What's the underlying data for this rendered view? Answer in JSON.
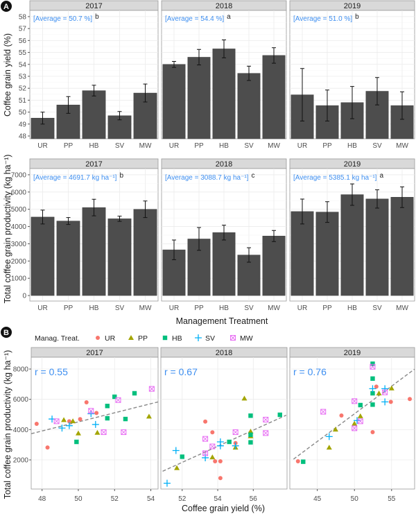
{
  "chart_data": [
    {
      "type": "bar",
      "panel_label": "A",
      "ylabel": "Coffee grain yield (%)",
      "xlabel": "",
      "ylim": [
        47.77,
        58.52
      ],
      "yticks": [
        48,
        49,
        50,
        51,
        52,
        53,
        54,
        55,
        56,
        57,
        58
      ],
      "categories": [
        "UR",
        "PP",
        "HB",
        "SV",
        "MW"
      ],
      "grid": true,
      "facets": [
        {
          "strip": "2017",
          "average_text": "[Average = 50.7 %]",
          "letter": "b",
          "values": [
            49.5,
            50.6,
            51.8,
            49.7,
            51.6
          ],
          "errors": [
            0.5,
            0.7,
            0.45,
            0.35,
            0.75
          ]
        },
        {
          "strip": "2018",
          "average_text": "[Average = 54.4 %]",
          "letter": "a",
          "values": [
            54.0,
            54.6,
            55.3,
            53.25,
            54.75
          ],
          "errors": [
            0.25,
            0.65,
            0.75,
            0.6,
            0.65
          ]
        },
        {
          "strip": "2019",
          "average_text": "[Average = 51.0 %]",
          "letter": "b",
          "values": [
            51.45,
            50.55,
            50.8,
            51.75,
            50.55
          ],
          "errors": [
            2.2,
            1.3,
            1.35,
            1.15,
            1.15
          ]
        }
      ]
    },
    {
      "type": "bar",
      "ylabel": "Total coffee grain productivity (kg ha⁻¹)",
      "xlabel": "Management Treatment",
      "ylim": [
        -320,
        7360
      ],
      "yticks": [
        0,
        1000,
        2000,
        3000,
        4000,
        5000,
        6000,
        7000
      ],
      "categories": [
        "UR",
        "PP",
        "HB",
        "SV",
        "MW"
      ],
      "grid": true,
      "facets": [
        {
          "strip": "2017",
          "average_text": "[Average = 4691.7 kg ha⁻¹]",
          "letter": "b",
          "values": [
            4550,
            4320,
            5100,
            4450,
            5000
          ],
          "errors": [
            400,
            200,
            480,
            150,
            480
          ]
        },
        {
          "strip": "2018",
          "average_text": "[Average = 3088.7 kg ha⁻¹]",
          "letter": "c",
          "values": [
            2650,
            3280,
            3650,
            2350,
            3450
          ],
          "errors": [
            570,
            660,
            430,
            420,
            320
          ]
        },
        {
          "strip": "2019",
          "average_text": "[Average = 5385.1 kg ha⁻¹]",
          "letter": "a",
          "values": [
            4870,
            4840,
            5850,
            5600,
            5700
          ],
          "errors": [
            720,
            600,
            620,
            530,
            600
          ]
        }
      ]
    },
    {
      "type": "scatter",
      "panel_label": "B",
      "legend_title": "Manag. Treat.",
      "legend_position": "top-left",
      "ylabel": "Total coffee grain productivity (kg ha⁻¹)",
      "xlabel": "Coffee grain yield (%)",
      "ylim": [
        76,
        8780
      ],
      "yticks": [
        2000,
        4000,
        6000,
        8000
      ],
      "grid": true,
      "series": [
        {
          "name": "UR",
          "color": "#F8766D",
          "shape": "circle"
        },
        {
          "name": "PP",
          "color": "#A3A500",
          "shape": "triangle"
        },
        {
          "name": "HB",
          "color": "#00BF7D",
          "shape": "square"
        },
        {
          "name": "SV",
          "color": "#00B0F6",
          "shape": "plus"
        },
        {
          "name": "MW",
          "color": "#E76BF3",
          "shape": "square-cross"
        }
      ],
      "facets": [
        {
          "strip": "2017",
          "r_text": "r = 0.55",
          "xlim": [
            47.4,
            54.4
          ],
          "xticks": [
            48,
            50,
            52,
            54
          ],
          "trend": [
            [
              47.4,
              3730
            ],
            [
              54.4,
              5830
            ]
          ],
          "points": {
            "UR": [
              [
                47.7,
                4380
              ],
              [
                48.3,
                2820
              ],
              [
                50.45,
                5800
              ],
              [
                50.1,
                4690
              ],
              [
                51.0,
                5100
              ],
              [
                49.5,
                4550
              ]
            ],
            "PP": [
              [
                49.2,
                4640
              ],
              [
                49.7,
                4560
              ],
              [
                50.0,
                3760
              ],
              [
                51.05,
                3800
              ],
              [
                53.9,
                4870
              ]
            ],
            "HB": [
              [
                49.9,
                3190
              ],
              [
                51.6,
                5560
              ],
              [
                51.6,
                4750
              ],
              [
                52.0,
                6170
              ],
              [
                52.6,
                4700
              ],
              [
                53.1,
                6400
              ]
            ],
            "SV": [
              [
                48.55,
                4700
              ],
              [
                49.1,
                4100
              ],
              [
                49.5,
                4260
              ],
              [
                50.7,
                5050
              ],
              [
                50.95,
                4340
              ]
            ],
            "MW": [
              [
                48.8,
                4550
              ],
              [
                50.7,
                5240
              ],
              [
                51.4,
                3830
              ],
              [
                52.2,
                5950
              ],
              [
                52.5,
                3830
              ],
              [
                54.05,
                6690
              ]
            ]
          }
        },
        {
          "strip": "2018",
          "r_text": "r = 0.67",
          "xlim": [
            50.8,
            57.9
          ],
          "xticks": [
            52,
            54,
            56
          ],
          "trend": [
            [
              50.9,
              1250
            ],
            [
              57.85,
              4950
            ]
          ],
          "points": {
            "UR": [
              [
                53.3,
                4530
              ],
              [
                53.7,
                3820
              ],
              [
                53.85,
                1910
              ],
              [
                54.15,
                1910
              ],
              [
                54.15,
                800
              ],
              [
                55.0,
                3110
              ]
            ],
            "PP": [
              [
                51.7,
                1470
              ],
              [
                53.7,
                2180
              ],
              [
                55.0,
                2820
              ],
              [
                55.5,
                6060
              ],
              [
                55.85,
                3880
              ],
              [
                55.85,
                3570
              ]
            ],
            "HB": [
              [
                52.0,
                2210
              ],
              [
                54.65,
                3190
              ],
              [
                55.85,
                4920
              ],
              [
                55.85,
                3660
              ],
              [
                55.85,
                3160
              ],
              [
                57.5,
                4980
              ]
            ],
            "SV": [
              [
                51.65,
                2620
              ],
              [
                51.15,
                460
              ],
              [
                53.3,
                2140
              ],
              [
                54.15,
                3190
              ],
              [
                54.15,
                2930
              ],
              [
                55.0,
                2930
              ]
            ],
            "MW": [
              [
                53.3,
                3390
              ],
              [
                53.3,
                2440
              ],
              [
                53.7,
                2890
              ],
              [
                55.0,
                3830
              ],
              [
                56.7,
                4660
              ],
              [
                56.7,
                3770
              ]
            ]
          }
        },
        {
          "strip": "2019",
          "r_text": "r = 0.76",
          "xlim": [
            41.3,
            58.1
          ],
          "xticks": [
            45,
            50,
            55
          ],
          "trend": [
            [
              41.8,
              2050
            ],
            [
              58.1,
              8000
            ]
          ],
          "points": {
            "UR": [
              [
                42.4,
                1910
              ],
              [
                48.25,
                4930
              ],
              [
                52.45,
                3830
              ],
              [
                52.95,
                6840
              ],
              [
                54.9,
                5830
              ],
              [
                57.45,
                6020
              ]
            ],
            "PP": [
              [
                46.6,
                2820
              ],
              [
                47.45,
                4010
              ],
              [
                50.0,
                4400
              ],
              [
                50.8,
                4890
              ],
              [
                53.3,
                6400
              ],
              [
                55.0,
                6730
              ]
            ],
            "HB": [
              [
                43.1,
                1880
              ],
              [
                50.8,
                5620
              ],
              [
                52.45,
                5650
              ],
              [
                52.45,
                6400
              ],
              [
                52.45,
                7370
              ],
              [
                52.45,
                8350
              ]
            ],
            "SV": [
              [
                46.6,
                3540
              ],
              [
                52.45,
                6700
              ],
              [
                54.1,
                5830
              ],
              [
                54.1,
                6700
              ],
              [
                50.35,
                4600
              ]
            ],
            "MW": [
              [
                45.8,
                5180
              ],
              [
                50.0,
                5880
              ],
              [
                50.0,
                4090
              ],
              [
                50.8,
                4550
              ],
              [
                52.45,
                8150
              ],
              [
                54.1,
                6460
              ]
            ]
          }
        }
      ]
    }
  ]
}
